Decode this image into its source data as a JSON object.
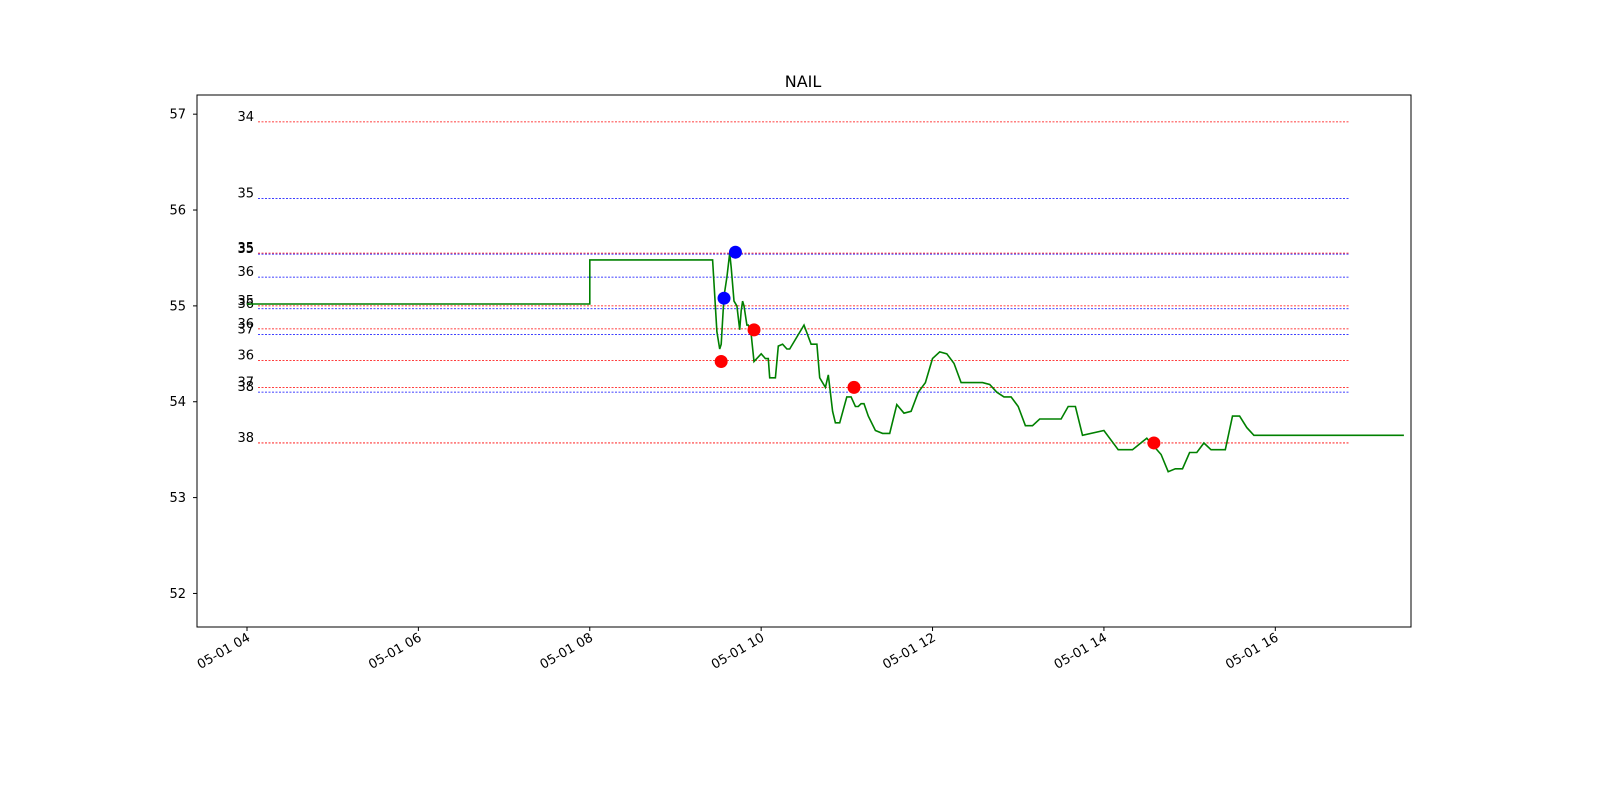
{
  "chart_data": {
    "type": "line",
    "title": "NAIL",
    "xlabel": "",
    "ylabel": "",
    "x_start": "05-01 03:25",
    "x_end": "05-01 17:35",
    "x_ticks": [
      "05-01 04",
      "05-01 06",
      "05-01 08",
      "05-01 10",
      "05-01 12",
      "05-01 14",
      "05-01 16"
    ],
    "y_ticks": [
      52,
      53,
      54,
      55,
      56,
      57
    ],
    "ylim": [
      51.65,
      57.2
    ],
    "grid": false,
    "colors": {
      "price": "#008000",
      "buy": "#0000ff",
      "sell": "#ff0000"
    },
    "series": [
      {
        "x": [
          "04:00",
          "08:00",
          "08:00",
          "09:26",
          "09:29",
          "09:31",
          "09:32",
          "09:34",
          "09:36",
          "09:38",
          "09:39",
          "09:41",
          "09:43",
          "09:45",
          "09:46",
          "09:47",
          "09:48",
          "09:50",
          "09:51",
          "09:53",
          "09:55",
          "10:00",
          "10:03",
          "10:05",
          "10:06",
          "10:08",
          "10:10",
          "10:12",
          "10:15",
          "10:18",
          "10:20",
          "10:30",
          "10:35",
          "10:37",
          "10:39",
          "10:41",
          "10:45",
          "10:47",
          "10:50",
          "10:52",
          "10:55",
          "11:00",
          "11:03",
          "11:06",
          "11:08",
          "11:10",
          "11:12",
          "11:15",
          "11:20",
          "11:25",
          "11:30",
          "11:35",
          "11:40",
          "11:45",
          "11:50",
          "11:55",
          "12:00",
          "12:05",
          "12:10",
          "12:15",
          "12:20",
          "12:25",
          "12:30",
          "12:35",
          "12:40",
          "12:45",
          "12:50",
          "12:55",
          "13:00",
          "13:05",
          "13:10",
          "13:15",
          "13:20",
          "13:25",
          "13:30",
          "13:35",
          "13:40",
          "13:45",
          "14:00",
          "14:10",
          "14:20",
          "14:30",
          "14:40",
          "14:45",
          "14:50",
          "14:55",
          "15:00",
          "15:05",
          "15:10",
          "15:15",
          "15:20",
          "15:25",
          "15:30",
          "15:35",
          "15:40",
          "15:45",
          "15:50",
          "15:55",
          "16:00",
          "17:30"
        ],
        "y": [
          55.02,
          55.02,
          55.48,
          55.48,
          54.73,
          54.55,
          54.6,
          55.1,
          55.3,
          55.55,
          55.4,
          55.05,
          55.0,
          54.75,
          54.95,
          55.05,
          55.0,
          54.8,
          54.8,
          54.7,
          54.42,
          54.5,
          54.45,
          54.45,
          54.25,
          54.25,
          54.25,
          54.58,
          54.6,
          54.55,
          54.55,
          54.8,
          54.6,
          54.6,
          54.6,
          54.25,
          54.15,
          54.28,
          53.9,
          53.78,
          53.78,
          54.05,
          54.05,
          53.95,
          53.95,
          53.98,
          53.98,
          53.85,
          53.7,
          53.67,
          53.67,
          53.97,
          53.88,
          53.9,
          54.1,
          54.2,
          54.45,
          54.52,
          54.5,
          54.4,
          54.2,
          54.2,
          54.2,
          54.2,
          54.18,
          54.1,
          54.05,
          54.05,
          53.95,
          53.75,
          53.75,
          53.82,
          53.82,
          53.82,
          53.82,
          53.95,
          53.95,
          53.65,
          53.7,
          53.5,
          53.5,
          53.62,
          53.45,
          53.27,
          53.3,
          53.3,
          53.47,
          53.47,
          53.57,
          53.5,
          53.5,
          53.5,
          53.85,
          53.85,
          53.73,
          53.65,
          53.65,
          53.65,
          53.65,
          53.65
        ]
      }
    ],
    "buy_markers": [
      {
        "x": "09:34",
        "y": 55.08
      },
      {
        "x": "09:42",
        "y": 55.56
      }
    ],
    "sell_markers": [
      {
        "x": "09:32",
        "y": 54.42
      },
      {
        "x": "09:55",
        "y": 54.75
      },
      {
        "x": "11:05",
        "y": 54.15
      },
      {
        "x": "14:35",
        "y": 53.57
      }
    ],
    "levels": [
      {
        "label": "34",
        "y": 56.92,
        "color": "red"
      },
      {
        "label": "35",
        "y": 56.12,
        "color": "blue"
      },
      {
        "label": "35",
        "y": 55.55,
        "color": "red"
      },
      {
        "label": "35",
        "y": 55.54,
        "color": "blue"
      },
      {
        "label": "36",
        "y": 55.3,
        "color": "blue"
      },
      {
        "label": "35",
        "y": 55.0,
        "color": "red"
      },
      {
        "label": "36",
        "y": 54.97,
        "color": "blue"
      },
      {
        "label": "36",
        "y": 54.76,
        "color": "red"
      },
      {
        "label": "37",
        "y": 54.7,
        "color": "blue"
      },
      {
        "label": "36",
        "y": 54.43,
        "color": "red"
      },
      {
        "label": "37",
        "y": 54.15,
        "color": "red"
      },
      {
        "label": "38",
        "y": 54.1,
        "color": "blue"
      },
      {
        "label": "38",
        "y": 53.57,
        "color": "red"
      }
    ]
  }
}
